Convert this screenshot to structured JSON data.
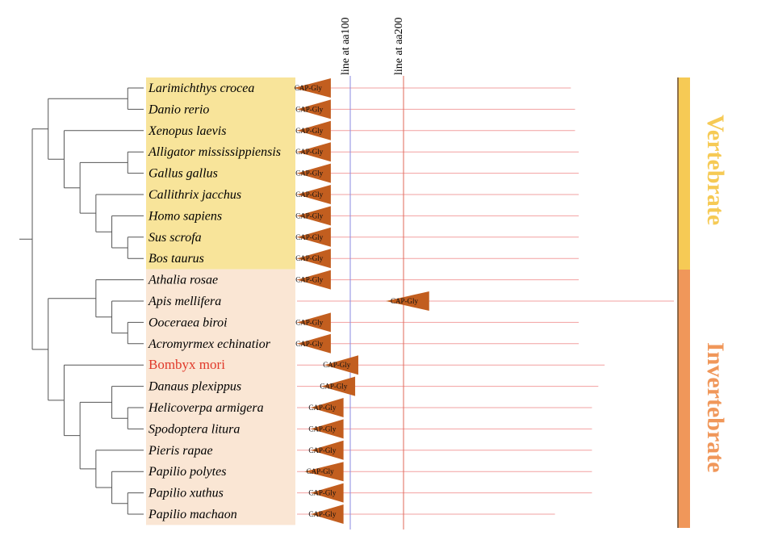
{
  "colors": {
    "vertebrate_block": "#f8e49a",
    "invertebrate_block": "#fae6d4",
    "domain_fill": "#c25e1f",
    "protein_line": "#f2a0a0",
    "line_aa100": "#8a8ae0",
    "line_aa200": "#e06a5a",
    "tree": "#555555",
    "highlight_species": "#e0392a",
    "vertebrate_bar": "#f6ca55",
    "invertebrate_bar": "#f0975a",
    "bar_edge": "#6b4a2a"
  },
  "reference_lines": [
    {
      "label": "line at aa100",
      "position": 100
    },
    {
      "label": "line at aa200",
      "position": 200
    }
  ],
  "domain_name": "CAP-Gly",
  "groups": {
    "vertebrate": {
      "label": "Vertebrate",
      "rows": 9
    },
    "invertebrate": {
      "label": "Invertebrate",
      "rows": 12
    }
  },
  "species": [
    {
      "name": "Larimichthys crocea",
      "group": "vertebrate",
      "domain_start": 6,
      "domain_end": 76,
      "length": 530
    },
    {
      "name": "Danio rerio",
      "group": "vertebrate",
      "domain_start": 12,
      "domain_end": 76,
      "length": 538
    },
    {
      "name": "Xenopus laevis",
      "group": "vertebrate",
      "domain_start": 12,
      "domain_end": 76,
      "length": 538
    },
    {
      "name": "Alligator mississippiensis",
      "group": "vertebrate",
      "domain_start": 12,
      "domain_end": 76,
      "length": 545
    },
    {
      "name": "Gallus gallus",
      "group": "vertebrate",
      "domain_start": 12,
      "domain_end": 76,
      "length": 545
    },
    {
      "name": "Callithrix jacchus",
      "group": "vertebrate",
      "domain_start": 12,
      "domain_end": 76,
      "length": 545
    },
    {
      "name": "Homo sapiens",
      "group": "vertebrate",
      "domain_start": 12,
      "domain_end": 76,
      "length": 545
    },
    {
      "name": "Sus scrofa",
      "group": "vertebrate",
      "domain_start": 12,
      "domain_end": 76,
      "length": 545
    },
    {
      "name": "Bos taurus",
      "group": "vertebrate",
      "domain_start": 12,
      "domain_end": 76,
      "length": 545
    },
    {
      "name": "Athalia rosae",
      "group": "invertebrate",
      "domain_start": 12,
      "domain_end": 76,
      "length": 545
    },
    {
      "name": "Apis mellifera",
      "group": "invertebrate",
      "domain_start": 180,
      "domain_end": 262,
      "length": 725
    },
    {
      "name": "Ooceraea biroi",
      "group": "invertebrate",
      "domain_start": 12,
      "domain_end": 76,
      "length": 545
    },
    {
      "name": "Acromyrmex echinatior",
      "group": "invertebrate",
      "domain_start": 12,
      "domain_end": 76,
      "length": 545
    },
    {
      "name": "Bombyx mori",
      "group": "invertebrate",
      "domain_start": 64,
      "domain_end": 128,
      "length": 594,
      "highlight": true
    },
    {
      "name": "Danaus plexippus",
      "group": "invertebrate",
      "domain_start": 58,
      "domain_end": 122,
      "length": 582
    },
    {
      "name": "Helicoverpa armigera",
      "group": "invertebrate",
      "domain_start": 38,
      "domain_end": 100,
      "length": 570
    },
    {
      "name": "Spodoptera litura",
      "group": "invertebrate",
      "domain_start": 38,
      "domain_end": 100,
      "length": 570
    },
    {
      "name": "Pieris rapae",
      "group": "invertebrate",
      "domain_start": 38,
      "domain_end": 100,
      "length": 570
    },
    {
      "name": "Papilio polytes",
      "group": "invertebrate",
      "domain_start": 26,
      "domain_end": 100,
      "length": 570
    },
    {
      "name": "Papilio xuthus",
      "group": "invertebrate",
      "domain_start": 38,
      "domain_end": 100,
      "length": 570
    },
    {
      "name": "Papilio machaon",
      "group": "invertebrate",
      "domain_start": 38,
      "domain_end": 100,
      "length": 500
    }
  ],
  "tree": {
    "c": [
      {
        "c": [
          {
            "c": [
              {
                "l": 0
              },
              {
                "l": 1
              }
            ]
          },
          {
            "c": [
              {
                "l": 2
              },
              {
                "c": [
                  {
                    "c": [
                      {
                        "l": 3
                      },
                      {
                        "l": 4
                      }
                    ]
                  },
                  {
                    "c": [
                      {
                        "l": 5
                      },
                      {
                        "c": [
                          {
                            "l": 6
                          },
                          {
                            "c": [
                              {
                                "l": 7
                              },
                              {
                                "l": 8
                              }
                            ]
                          }
                        ]
                      }
                    ]
                  }
                ]
              }
            ]
          }
        ]
      },
      {
        "c": [
          {
            "c": [
              {
                "l": 9
              },
              {
                "c": [
                  {
                    "l": 10
                  },
                  {
                    "c": [
                      {
                        "l": 11
                      },
                      {
                        "l": 12
                      }
                    ]
                  }
                ]
              }
            ]
          },
          {
            "c": [
              {
                "l": 13
              },
              {
                "c": [
                  {
                    "c": [
                      {
                        "l": 14
                      },
                      {
                        "c": [
                          {
                            "l": 15
                          },
                          {
                            "l": 16
                          }
                        ]
                      }
                    ]
                  },
                  {
                    "c": [
                      {
                        "l": 17
                      },
                      {
                        "c": [
                          {
                            "l": 18
                          },
                          {
                            "c": [
                              {
                                "l": 19
                              },
                              {
                                "l": 20
                              }
                            ]
                          }
                        ]
                      }
                    ]
                  }
                ]
              }
            ]
          }
        ]
      }
    ]
  }
}
